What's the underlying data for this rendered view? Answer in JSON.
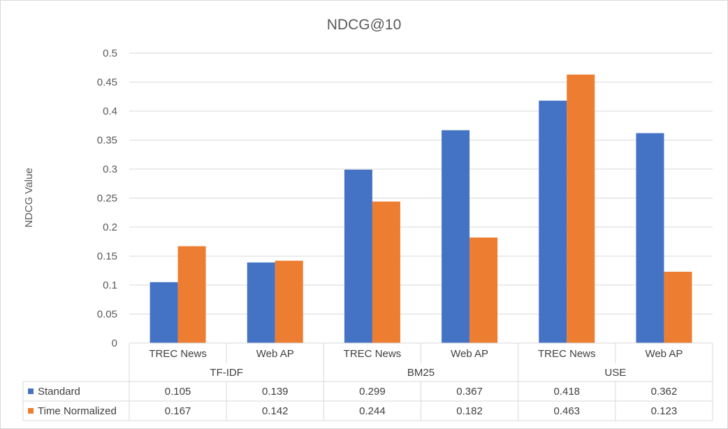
{
  "chart_data": {
    "type": "bar",
    "title": "NDCG@10",
    "ylabel": "NDCG Value",
    "xlabel": "",
    "ylim": [
      0,
      0.5
    ],
    "yticks": [
      "0",
      "0.05",
      "0.1",
      "0.15",
      "0.2",
      "0.25",
      "0.3",
      "0.35",
      "0.4",
      "0.45",
      "0.5"
    ],
    "grid": true,
    "legend_placement": "bottom-left-in-table",
    "groups": [
      {
        "name": "TF-IDF",
        "categories": [
          "TREC News",
          "Web AP"
        ]
      },
      {
        "name": "BM25",
        "categories": [
          "TREC News",
          "Web AP"
        ]
      },
      {
        "name": "USE",
        "categories": [
          "TREC News",
          "Web AP"
        ]
      }
    ],
    "categories": [
      "TREC News",
      "Web AP",
      "TREC News",
      "Web AP",
      "TREC News",
      "Web AP"
    ],
    "series": [
      {
        "name": "Standard",
        "color": "#4472C4",
        "values": [
          0.105,
          0.139,
          0.299,
          0.367,
          0.418,
          0.362
        ],
        "labels": [
          "0.105",
          "0.139",
          "0.299",
          "0.367",
          "0.418",
          "0.362"
        ]
      },
      {
        "name": "Time Normalized",
        "color": "#ED7D31",
        "values": [
          0.167,
          0.142,
          0.244,
          0.182,
          0.463,
          0.123
        ],
        "labels": [
          "0.167",
          "0.142",
          "0.244",
          "0.182",
          "0.463",
          "0.123"
        ]
      }
    ]
  }
}
